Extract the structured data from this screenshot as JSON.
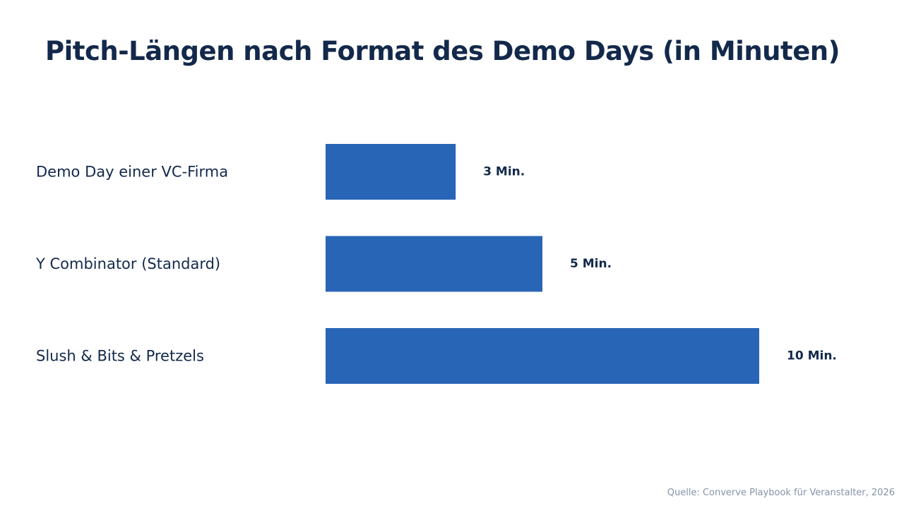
{
  "chart_data": {
    "type": "bar",
    "orientation": "horizontal",
    "title": "Pitch-Längen nach Format des Demo Days (in Minuten)",
    "categories": [
      "Demo Day einer VC-Firma",
      "Y Combinator (Standard)",
      "Slush & Bits & Pretzels"
    ],
    "values": [
      3,
      5,
      10
    ],
    "value_labels": [
      "3 Min.",
      "5 Min.",
      "10 Min."
    ],
    "xlabel": "",
    "ylabel": "",
    "xlim": [
      0,
      10
    ],
    "grid": false,
    "legend": "none",
    "bar_color": "#2965b6",
    "source": "Quelle: Converve Playbook für Veranstalter, 2026"
  }
}
